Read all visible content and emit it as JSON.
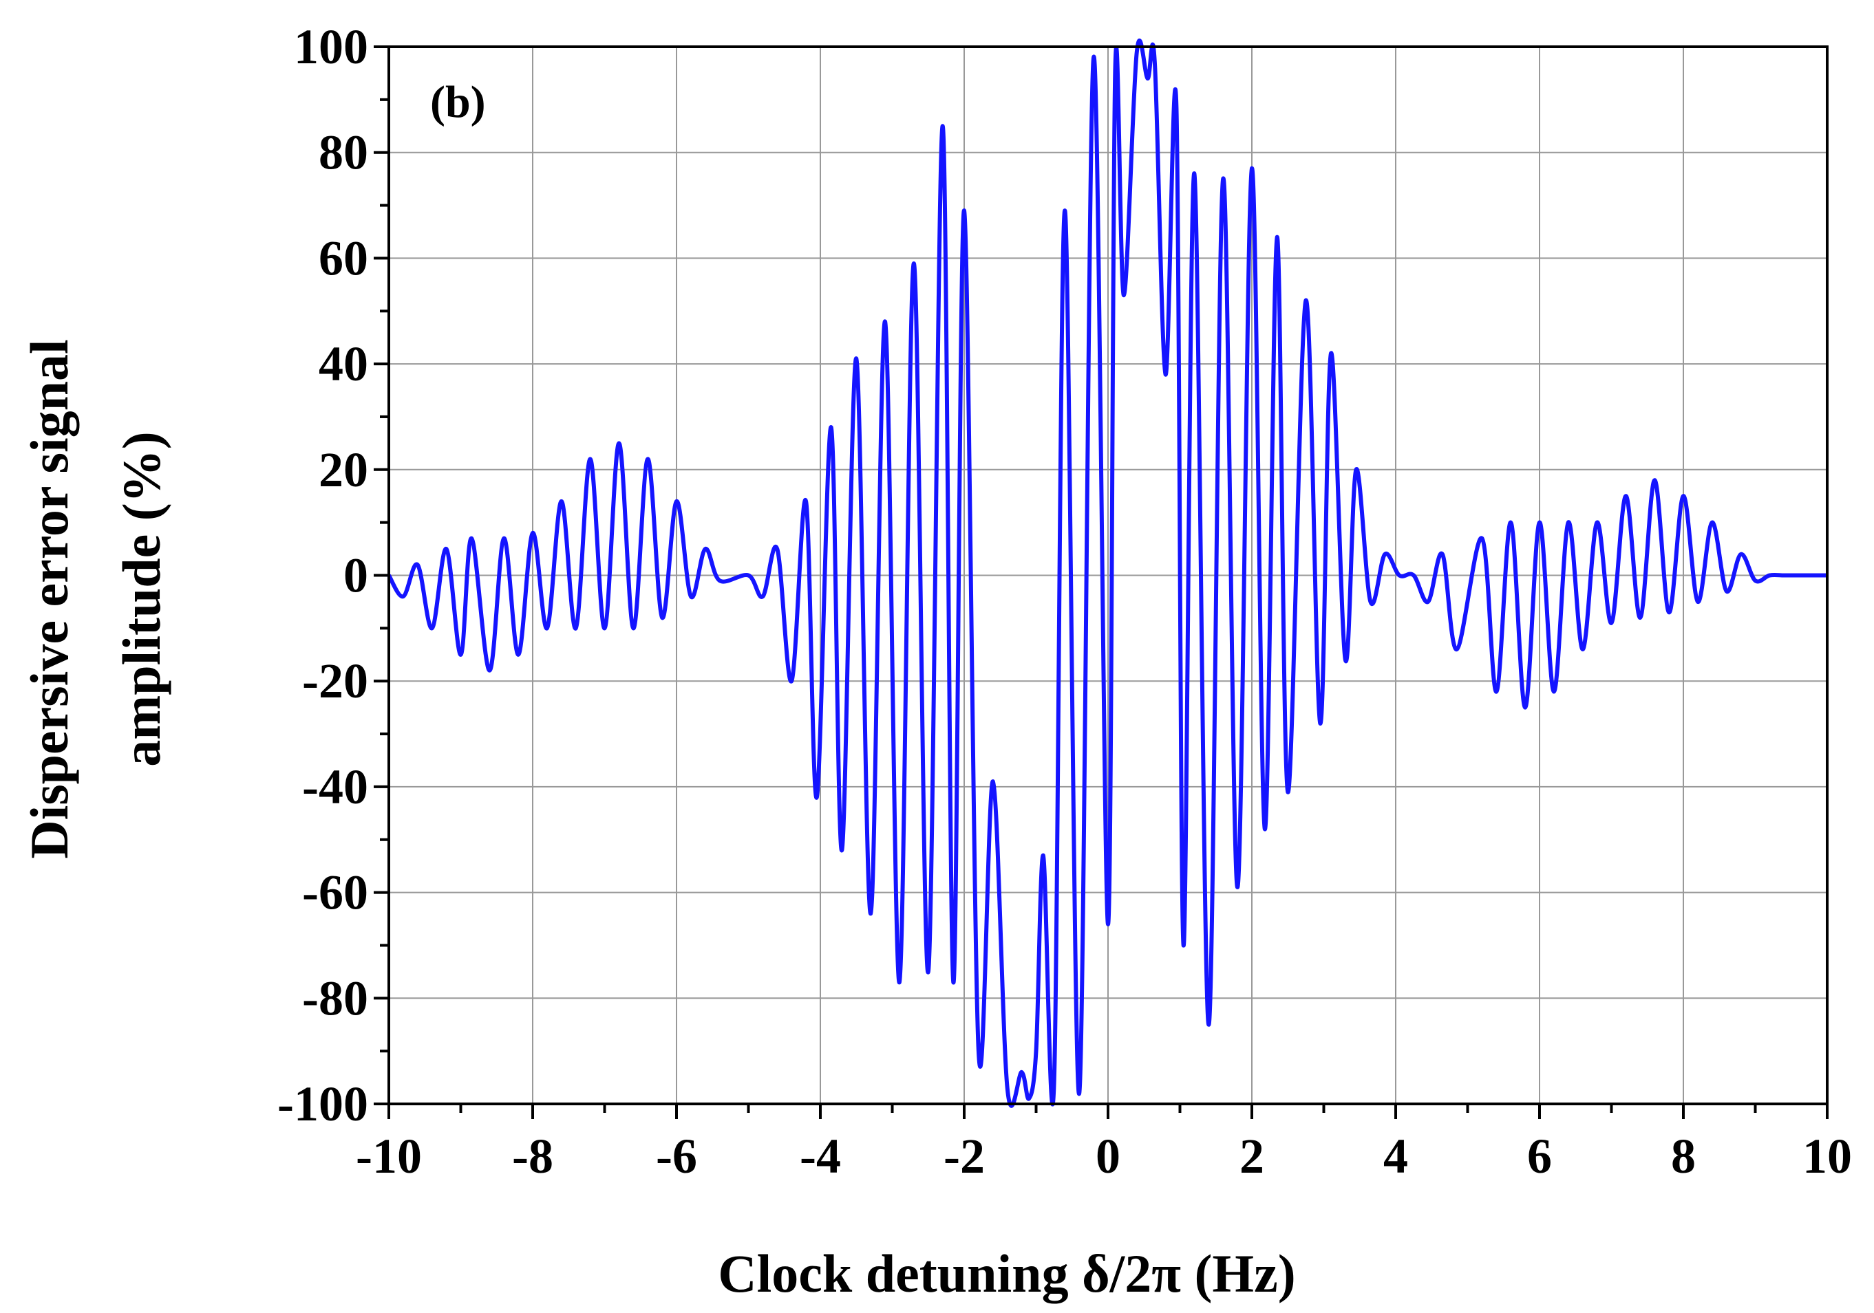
{
  "chart_data": {
    "type": "line",
    "panel_label": "(b)",
    "xlabel": "Clock detuning δ/2π (Hz)",
    "ylabel_line1": "Dispersive error signal",
    "ylabel_line2": "amplitude (%)",
    "xlim": [
      -10,
      10
    ],
    "ylim": [
      -100,
      100
    ],
    "x_ticks": [
      -10,
      -8,
      -6,
      -4,
      -2,
      0,
      2,
      4,
      6,
      8,
      10
    ],
    "x_tick_labels": [
      "-10",
      "-8",
      "-6",
      "-4",
      "-2",
      "0",
      "2",
      "4",
      "6",
      "8",
      "10"
    ],
    "y_ticks": [
      -100,
      -80,
      -60,
      -40,
      -20,
      0,
      20,
      40,
      60,
      80,
      100
    ],
    "y_tick_labels": [
      "-100",
      "-80",
      "-60",
      "-40",
      "-20",
      "0",
      "20",
      "40",
      "60",
      "80",
      "100"
    ],
    "grid": true,
    "line_color": "#1414ff",
    "series": [
      {
        "x": [
          -10.0,
          -9.8,
          -9.6,
          -9.4,
          -9.2,
          -9.0,
          -8.85,
          -8.6,
          -8.4,
          -8.2,
          -8.0,
          -7.8,
          -7.6,
          -7.4,
          -7.2,
          -7.0,
          -6.8,
          -6.6,
          -6.4,
          -6.2,
          -6.0,
          -5.8,
          -5.6,
          -5.4,
          -5.0,
          -4.8,
          -4.6,
          -4.4,
          -4.2,
          -4.05,
          -3.85,
          -3.7,
          -3.5,
          -3.3,
          -3.1,
          -2.9,
          -2.7,
          -2.5,
          -2.3,
          -2.15,
          -2.0,
          -1.8,
          -1.6,
          -1.4,
          -1.2,
          -1.1,
          -1.0,
          -0.9,
          -0.75,
          -0.6,
          -0.4,
          -0.2,
          0.0,
          0.1,
          0.22,
          0.4,
          0.55,
          0.65,
          0.8,
          0.95,
          1.05,
          1.2,
          1.4,
          1.6,
          1.8,
          2.0,
          2.18,
          2.35,
          2.5,
          2.75,
          2.95,
          3.1,
          3.3,
          3.45,
          3.65,
          3.85,
          4.05,
          4.25,
          4.45,
          4.65,
          4.85,
          5.2,
          5.4,
          5.6,
          5.8,
          6.0,
          6.2,
          6.4,
          6.6,
          6.8,
          7.0,
          7.2,
          7.4,
          7.6,
          7.8,
          8.0,
          8.2,
          8.4,
          8.6,
          8.8,
          9.0,
          9.2,
          9.4,
          9.6,
          9.8,
          10.0
        ],
        "y": [
          0,
          -4,
          2,
          -10,
          5,
          -15,
          7,
          -18,
          7,
          -15,
          8,
          -10,
          14,
          -10,
          22,
          -10,
          25,
          -10,
          22,
          -8,
          14,
          -4,
          5,
          -1,
          0,
          -4,
          5,
          -20,
          14,
          -42,
          28,
          -52,
          41,
          -64,
          48,
          -77,
          59,
          -75,
          85,
          -77,
          69,
          -90,
          -39,
          -97,
          -94,
          -99,
          -90,
          -53,
          -96,
          69,
          -98,
          98,
          -66,
          96,
          53,
          99,
          94,
          97,
          38,
          89,
          -70,
          76,
          -85,
          75,
          -59,
          77,
          -48,
          64,
          -41,
          52,
          -28,
          42,
          -16,
          20,
          -5,
          4,
          0,
          0,
          -5,
          4,
          -14,
          7,
          -22,
          10,
          -25,
          10,
          -22,
          10,
          -14,
          10,
          -9,
          15,
          -8,
          18,
          -7,
          15,
          -5,
          10,
          -3,
          4,
          -1,
          0,
          0,
          0,
          0,
          0
        ]
      }
    ]
  }
}
